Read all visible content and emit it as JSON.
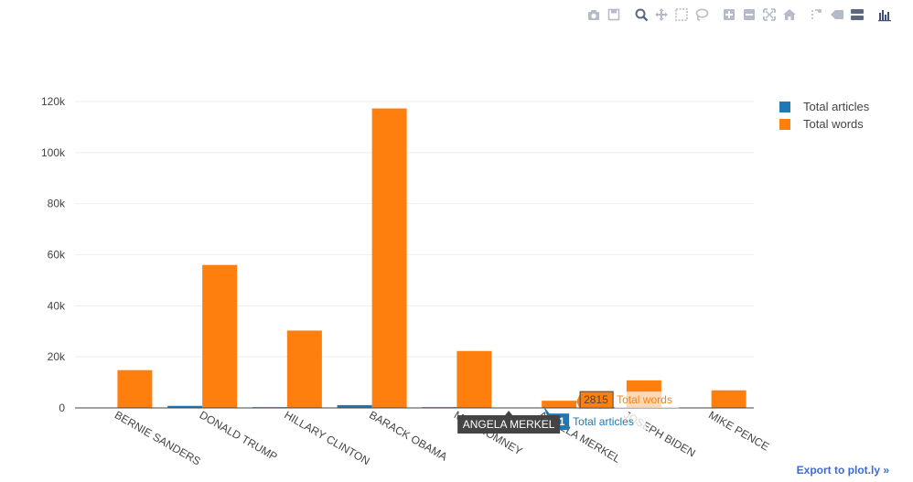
{
  "modebar": {
    "buttons": [
      {
        "name": "camera-icon",
        "group": 1
      },
      {
        "name": "save-icon",
        "group": 1
      },
      {
        "name": "zoom-icon",
        "group": 2
      },
      {
        "name": "pan-icon",
        "group": 2
      },
      {
        "name": "box-select-icon",
        "group": 2
      },
      {
        "name": "lasso-select-icon",
        "group": 2
      },
      {
        "name": "zoom-in-icon",
        "group": 3
      },
      {
        "name": "zoom-out-icon",
        "group": 3
      },
      {
        "name": "autoscale-icon",
        "group": 3
      },
      {
        "name": "home-icon",
        "group": 3
      },
      {
        "name": "spike-lines-icon",
        "group": 4
      },
      {
        "name": "hover-closest-icon",
        "group": 4
      },
      {
        "name": "hover-compare-icon",
        "group": 4
      },
      {
        "name": "plotly-logo-icon",
        "group": 5
      }
    ]
  },
  "export_link": "Export to plot.ly »",
  "colors": {
    "articles": "#1f77b4",
    "words": "#ff7f0e",
    "grid": "#eeeeee",
    "axis": "#444444"
  },
  "chart_data": {
    "type": "bar",
    "categories": [
      "BERNIE SANDERS",
      "DONALD TRUMP",
      "HILLARY CLINTON",
      "BARACK OBAMA",
      "MITT ROMNEY",
      "ANGELA MERKEL",
      "JOSEPH BIDEN",
      "MIKE PENCE"
    ],
    "series": [
      {
        "name": "Total articles",
        "values": [
          150,
          800,
          300,
          1100,
          300,
          61,
          200,
          150
        ]
      },
      {
        "name": "Total words",
        "values": [
          14800,
          56000,
          30300,
          117300,
          22300,
          2815,
          10800,
          6900
        ]
      }
    ],
    "ylim": [
      0,
      120000
    ],
    "yticks": [
      0,
      20000,
      40000,
      60000,
      80000,
      100000,
      120000
    ],
    "ytick_labels": [
      "0",
      "20k",
      "40k",
      "60k",
      "80k",
      "100k",
      "120k"
    ],
    "grid": true,
    "legend_position": "top-right",
    "hover": {
      "category": "ANGELA MERKEL",
      "words_value": "2815",
      "words_label": "Total words",
      "articles_value": "61",
      "articles_label": "Total articles"
    }
  }
}
